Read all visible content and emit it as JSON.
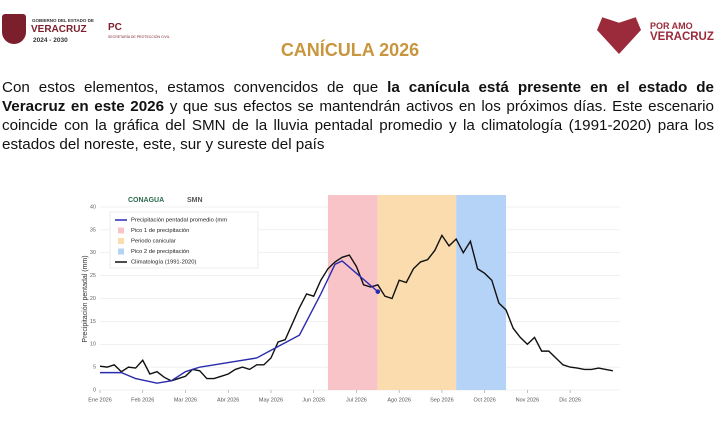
{
  "header": {
    "gov_line1": "GOBIERNO DEL ESTADO DE",
    "gov_line2": "VERACRUZ",
    "gov_line3": "2024 - 2030",
    "pc": "PC",
    "pc_sub": "SECRETARÍA DE PROTECCIÓN CIVIL",
    "right_line1": "POR AMO",
    "right_line2": "VERACRUZ"
  },
  "title": "CANÍCULA 2026",
  "paragraph": {
    "intro": "Con estos elementos, estamos convencidos de que ",
    "bold": "la canícula está presente en el estado de Veracruz en este 2026",
    "rest": " y que sus efectos se mantendrán activos en los próximos días. Este escenario coincide con la gráfica del SMN de la lluvia pentadal promedio y la climatología (1991-2020) para los estados del noreste, este, sur y sureste del país"
  },
  "chart_data": {
    "type": "line",
    "logos": [
      "CONAGUA",
      "SMN"
    ],
    "ylabel": "Precipitación pentadal (mm)",
    "xlim": [
      0,
      73
    ],
    "ylim": [
      0,
      40
    ],
    "yticks": [
      0,
      5,
      10,
      15,
      20,
      25,
      30,
      35,
      40
    ],
    "grid": true,
    "xticks": [
      {
        "value": 0,
        "label": "Ene 2026"
      },
      {
        "value": 6,
        "label": "Feb 2026"
      },
      {
        "value": 12,
        "label": "Mar 2026"
      },
      {
        "value": 18,
        "label": "Abr 2026"
      },
      {
        "value": 24,
        "label": "May 2026"
      },
      {
        "value": 30,
        "label": "Jun 2026"
      },
      {
        "value": 36,
        "label": "Jul 2026"
      },
      {
        "value": 42,
        "label": "Ago 2026"
      },
      {
        "value": 48,
        "label": "Sep 2026"
      },
      {
        "value": 54,
        "label": "Oct 2026"
      },
      {
        "value": 60,
        "label": "Nov 2026"
      },
      {
        "value": 66,
        "label": "Dic 2026"
      }
    ],
    "bands": [
      {
        "name": "Pico 1 de precipitación",
        "color": "#f8c4c8",
        "x": [
          32,
          39
        ]
      },
      {
        "name": "Periodo canicular",
        "color": "#fbdcae",
        "x": [
          39,
          50
        ]
      },
      {
        "name": "Pico 2 de precipitación",
        "color": "#b5d3f7",
        "x": [
          50,
          57
        ]
      }
    ],
    "series": [
      {
        "name": "Precipitación pentadal promedio (mm",
        "color": "#2b2bb0",
        "x": [
          0,
          3,
          5,
          8,
          10,
          12,
          14,
          18,
          22,
          25,
          28,
          31,
          33,
          34,
          36,
          39
        ],
        "values": [
          3.8,
          3.8,
          2.5,
          1.5,
          2.0,
          4.0,
          5.0,
          6.0,
          7.0,
          9.5,
          12,
          21,
          27.5,
          28.2,
          25.5,
          21.5
        ]
      },
      {
        "name": "Climatología (1991-2020)",
        "color": "#111111",
        "x": [
          0,
          1,
          2,
          3,
          4,
          5,
          6,
          7,
          8,
          9,
          10,
          11,
          12,
          13,
          14,
          15,
          16,
          17,
          18,
          19,
          20,
          21,
          22,
          23,
          24,
          25,
          26,
          27,
          28,
          29,
          30,
          31,
          32,
          33,
          34,
          35,
          36,
          37,
          38,
          39,
          40,
          41,
          42,
          43,
          44,
          45,
          46,
          47,
          48,
          49,
          50,
          51,
          52,
          53,
          54,
          55,
          56,
          57,
          58,
          59,
          60,
          61,
          62,
          63,
          64,
          65,
          66,
          67,
          68,
          69,
          70,
          71,
          72
        ],
        "values": [
          5.2,
          5.0,
          5.5,
          4.0,
          5.0,
          4.8,
          6.5,
          3.5,
          4.0,
          2.8,
          2.0,
          2.5,
          3.0,
          4.5,
          4.2,
          2.5,
          2.5,
          3.0,
          3.5,
          4.5,
          5.0,
          4.5,
          5.5,
          5.5,
          7.0,
          10.5,
          11.0,
          14.5,
          18.0,
          21.0,
          20.5,
          24.0,
          26.5,
          28.0,
          29.0,
          29.5,
          27.0,
          23.0,
          22.5,
          23.0,
          20.5,
          20.0,
          24.0,
          23.5,
          26.5,
          28.0,
          28.5,
          30.5,
          33.8,
          31.5,
          33.0,
          30.0,
          32.5,
          26.5,
          25.5,
          24.0,
          19.0,
          17.5,
          13.5,
          11.5,
          10.0,
          11.5,
          8.5,
          8.5,
          7.0,
          5.5,
          5.0,
          4.8,
          4.5,
          4.5,
          4.8,
          4.5,
          4.2
        ]
      }
    ]
  }
}
